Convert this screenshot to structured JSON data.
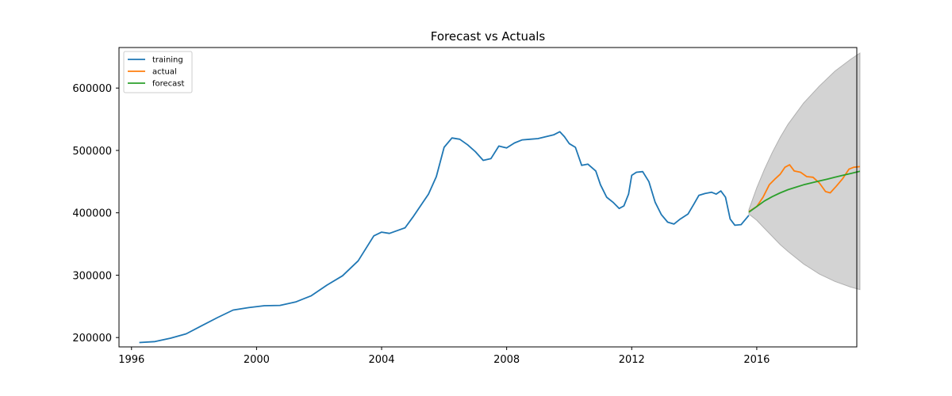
{
  "chart_data": {
    "type": "line",
    "title": "Forecast vs Actuals",
    "xlabel": "",
    "ylabel": "",
    "xlim": [
      1995.6,
      2019.2
    ],
    "ylim": [
      185000,
      665000
    ],
    "x_ticks": [
      1996,
      2000,
      2004,
      2008,
      2012,
      2016
    ],
    "x_tick_labels": [
      "1996",
      "2000",
      "2004",
      "2008",
      "2012",
      "2016"
    ],
    "y_ticks": [
      200000,
      300000,
      400000,
      500000,
      600000
    ],
    "y_tick_labels": [
      "200000",
      "300000",
      "400000",
      "500000",
      "600000"
    ],
    "grid": false,
    "legend_position": "top-left",
    "series": [
      {
        "name": "training",
        "color": "#1f77b4",
        "points": [
          [
            1996.25,
            192000
          ],
          [
            1996.75,
            193500
          ],
          [
            1997.25,
            199000
          ],
          [
            1997.75,
            206000
          ],
          [
            1998.25,
            219000
          ],
          [
            1998.75,
            232000
          ],
          [
            1999.25,
            244000
          ],
          [
            1999.75,
            248000
          ],
          [
            2000.25,
            251000
          ],
          [
            2000.75,
            251500
          ],
          [
            2001.25,
            257000
          ],
          [
            2001.75,
            267000
          ],
          [
            2002.25,
            284000
          ],
          [
            2002.75,
            299000
          ],
          [
            2003.25,
            323000
          ],
          [
            2003.75,
            363000
          ],
          [
            2004.0,
            369000
          ],
          [
            2004.25,
            367000
          ],
          [
            2004.75,
            376000
          ],
          [
            2005.0,
            393000
          ],
          [
            2005.5,
            430000
          ],
          [
            2005.75,
            458000
          ],
          [
            2006.0,
            505000
          ],
          [
            2006.25,
            520000
          ],
          [
            2006.5,
            518000
          ],
          [
            2006.75,
            509000
          ],
          [
            2007.0,
            498000
          ],
          [
            2007.25,
            484000
          ],
          [
            2007.5,
            487000
          ],
          [
            2007.75,
            507000
          ],
          [
            2008.0,
            504000
          ],
          [
            2008.25,
            512000
          ],
          [
            2008.5,
            517000
          ],
          [
            2008.75,
            518000
          ],
          [
            2009.0,
            519000
          ],
          [
            2009.25,
            522000
          ],
          [
            2009.5,
            525000
          ],
          [
            2009.7,
            530000
          ],
          [
            2009.85,
            522000
          ],
          [
            2010.0,
            511000
          ],
          [
            2010.2,
            505000
          ],
          [
            2010.4,
            476000
          ],
          [
            2010.6,
            478000
          ],
          [
            2010.85,
            467000
          ],
          [
            2011.0,
            445000
          ],
          [
            2011.2,
            425000
          ],
          [
            2011.4,
            417000
          ],
          [
            2011.6,
            407000
          ],
          [
            2011.75,
            411000
          ],
          [
            2011.9,
            430000
          ],
          [
            2012.0,
            460000
          ],
          [
            2012.15,
            465000
          ],
          [
            2012.35,
            466000
          ],
          [
            2012.55,
            450000
          ],
          [
            2012.75,
            417000
          ],
          [
            2012.95,
            397000
          ],
          [
            2013.15,
            385000
          ],
          [
            2013.35,
            382000
          ],
          [
            2013.55,
            390000
          ],
          [
            2013.8,
            398000
          ],
          [
            2014.0,
            415000
          ],
          [
            2014.15,
            428000
          ],
          [
            2014.35,
            431000
          ],
          [
            2014.55,
            433000
          ],
          [
            2014.7,
            430000
          ],
          [
            2014.85,
            435000
          ],
          [
            2015.0,
            425000
          ],
          [
            2015.15,
            390000
          ],
          [
            2015.3,
            380000
          ],
          [
            2015.5,
            381000
          ],
          [
            2015.75,
            396000
          ]
        ]
      },
      {
        "name": "actual",
        "color": "#ff7f0e",
        "points": [
          [
            2015.75,
            402000
          ],
          [
            2016.0,
            410000
          ],
          [
            2016.2,
            425000
          ],
          [
            2016.4,
            445000
          ],
          [
            2016.6,
            455000
          ],
          [
            2016.75,
            462000
          ],
          [
            2016.9,
            473000
          ],
          [
            2017.05,
            477000
          ],
          [
            2017.2,
            467000
          ],
          [
            2017.4,
            465000
          ],
          [
            2017.6,
            458000
          ],
          [
            2017.8,
            457000
          ],
          [
            2018.0,
            448000
          ],
          [
            2018.2,
            434000
          ],
          [
            2018.35,
            432000
          ],
          [
            2018.55,
            443000
          ],
          [
            2018.75,
            455000
          ],
          [
            2018.95,
            470000
          ],
          [
            2019.1,
            473000
          ],
          [
            2019.3,
            474000
          ]
        ]
      },
      {
        "name": "forecast",
        "color": "#2ca02c",
        "points": [
          [
            2015.75,
            401000
          ],
          [
            2016.0,
            410000
          ],
          [
            2016.25,
            419000
          ],
          [
            2016.5,
            426000
          ],
          [
            2016.75,
            432000
          ],
          [
            2017.0,
            437000
          ],
          [
            2017.25,
            441000
          ],
          [
            2017.5,
            445000
          ],
          [
            2017.75,
            448000
          ],
          [
            2018.0,
            451000
          ],
          [
            2018.25,
            454000
          ],
          [
            2018.5,
            457000
          ],
          [
            2018.75,
            460000
          ],
          [
            2019.0,
            463000
          ],
          [
            2019.3,
            466500
          ]
        ]
      }
    ],
    "confidence_interval": {
      "color": "#d3d3d3",
      "upper": [
        [
          2015.75,
          405000
        ],
        [
          2016.0,
          440000
        ],
        [
          2016.25,
          470000
        ],
        [
          2016.5,
          497000
        ],
        [
          2016.75,
          521000
        ],
        [
          2017.0,
          542000
        ],
        [
          2017.5,
          576000
        ],
        [
          2018.0,
          603000
        ],
        [
          2018.5,
          627000
        ],
        [
          2019.0,
          646000
        ],
        [
          2019.3,
          656000
        ]
      ],
      "lower": [
        [
          2015.75,
          398000
        ],
        [
          2016.0,
          388000
        ],
        [
          2016.25,
          375000
        ],
        [
          2016.5,
          362000
        ],
        [
          2016.75,
          349000
        ],
        [
          2017.0,
          338000
        ],
        [
          2017.5,
          318000
        ],
        [
          2018.0,
          302000
        ],
        [
          2018.5,
          290000
        ],
        [
          2019.0,
          281000
        ],
        [
          2019.3,
          277000
        ]
      ]
    }
  }
}
